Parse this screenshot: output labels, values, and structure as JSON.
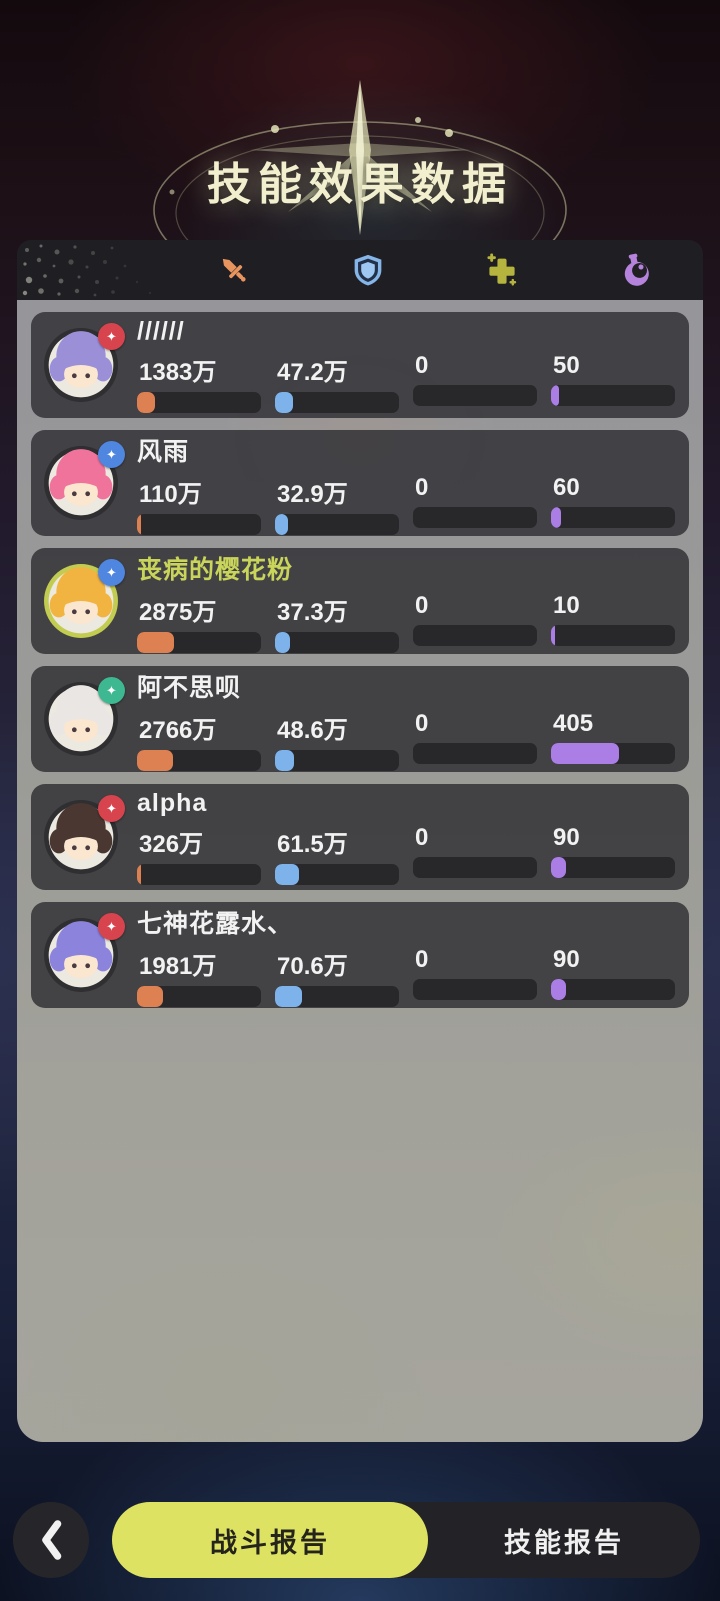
{
  "header": {
    "title": "技能效果数据"
  },
  "tab_bar": {
    "tabs": [
      {
        "id": "damage",
        "icon": "sword-icon",
        "color": "#e8945e"
      },
      {
        "id": "defense",
        "icon": "shield-icon",
        "color": "#86b5e8"
      },
      {
        "id": "heal",
        "icon": "heal-cross-icon",
        "color": "#b4b43e"
      },
      {
        "id": "potion",
        "icon": "potion-icon",
        "color": "#b683dc"
      }
    ]
  },
  "players": [
    {
      "name": "//////",
      "highlight": false,
      "avatar": {
        "hair": "#9b8fd8",
        "ring": "#2f2f31"
      },
      "badge": {
        "icon": "crest-icon",
        "color": "#d8444e",
        "glyph": "✦"
      },
      "stats": [
        {
          "value": "1383万",
          "fill_pct": 14.4,
          "color": "#dd8153"
        },
        {
          "value": "47.2万",
          "fill_pct": 14.7,
          "color": "#7db3ea"
        },
        {
          "value": "0",
          "fill_pct": 0,
          "color": "#7db3ea"
        },
        {
          "value": "50",
          "fill_pct": 6.8,
          "color": "#ab7ee6"
        }
      ]
    },
    {
      "name": "风雨",
      "highlight": false,
      "avatar": {
        "hair": "#f0739c",
        "ring": "#2f2f31"
      },
      "badge": {
        "icon": "crest-icon",
        "color": "#4f86e0",
        "glyph": "✦"
      },
      "stats": [
        {
          "value": "110万",
          "fill_pct": 1.1,
          "color": "#dd8153"
        },
        {
          "value": "32.9万",
          "fill_pct": 10.3,
          "color": "#7db3ea"
        },
        {
          "value": "0",
          "fill_pct": 0,
          "color": "#7db3ea"
        },
        {
          "value": "60",
          "fill_pct": 8.1,
          "color": "#ab7ee6"
        }
      ]
    },
    {
      "name": "丧病的樱花粉",
      "highlight": true,
      "avatar": {
        "hair": "#f2b440",
        "ring": "#c2cc50"
      },
      "badge": {
        "icon": "crest-icon",
        "color": "#4f86e0",
        "glyph": "✦"
      },
      "stats": [
        {
          "value": "2875万",
          "fill_pct": 30.0,
          "color": "#dd8153"
        },
        {
          "value": "37.3万",
          "fill_pct": 11.7,
          "color": "#7db3ea"
        },
        {
          "value": "0",
          "fill_pct": 0,
          "color": "#7db3ea"
        },
        {
          "value": "10",
          "fill_pct": 1.4,
          "color": "#ab7ee6"
        }
      ]
    },
    {
      "name": "阿不思呗",
      "highlight": false,
      "avatar": {
        "hair": "#e9e6e4",
        "ring": "#2f2f31"
      },
      "badge": {
        "icon": "crest-icon",
        "color": "#3db890",
        "glyph": "✦"
      },
      "stats": [
        {
          "value": "2766万",
          "fill_pct": 28.9,
          "color": "#dd8153"
        },
        {
          "value": "48.6万",
          "fill_pct": 15.2,
          "color": "#7db3ea"
        },
        {
          "value": "0",
          "fill_pct": 0,
          "color": "#7db3ea"
        },
        {
          "value": "405",
          "fill_pct": 54.7,
          "color": "#ab7ee6"
        }
      ]
    },
    {
      "name": "alpha",
      "highlight": false,
      "avatar": {
        "hair": "#4a3731",
        "ring": "#2f2f31"
      },
      "badge": {
        "icon": "crest-icon",
        "color": "#d8444e",
        "glyph": "✦"
      },
      "stats": [
        {
          "value": "326万",
          "fill_pct": 3.4,
          "color": "#dd8153"
        },
        {
          "value": "61.5万",
          "fill_pct": 19.2,
          "color": "#7db3ea"
        },
        {
          "value": "0",
          "fill_pct": 0,
          "color": "#7db3ea"
        },
        {
          "value": "90",
          "fill_pct": 12.2,
          "color": "#ab7ee6"
        }
      ]
    },
    {
      "name": "七神花露水、",
      "highlight": false,
      "avatar": {
        "hair": "#8b83dc",
        "ring": "#2f2f31"
      },
      "badge": {
        "icon": "crest-icon",
        "color": "#d8444e",
        "glyph": "✦"
      },
      "stats": [
        {
          "value": "1981万",
          "fill_pct": 20.7,
          "color": "#dd8153"
        },
        {
          "value": "70.6万",
          "fill_pct": 22.1,
          "color": "#7db3ea"
        },
        {
          "value": "0",
          "fill_pct": 0,
          "color": "#7db3ea"
        },
        {
          "value": "90",
          "fill_pct": 12.2,
          "color": "#ab7ee6"
        }
      ]
    }
  ],
  "footer": {
    "back_icon": "chevron-left-icon",
    "active_tab": "战斗报告",
    "inactive_tab": "技能报告"
  },
  "colors": {
    "accent_orange": "#dd8153",
    "accent_blue": "#7db3ea",
    "accent_purple": "#ab7ee6",
    "highlight_yellow": "#c9d45a",
    "footer_active_bg": "#dde263",
    "bar_track": "#28282b"
  }
}
